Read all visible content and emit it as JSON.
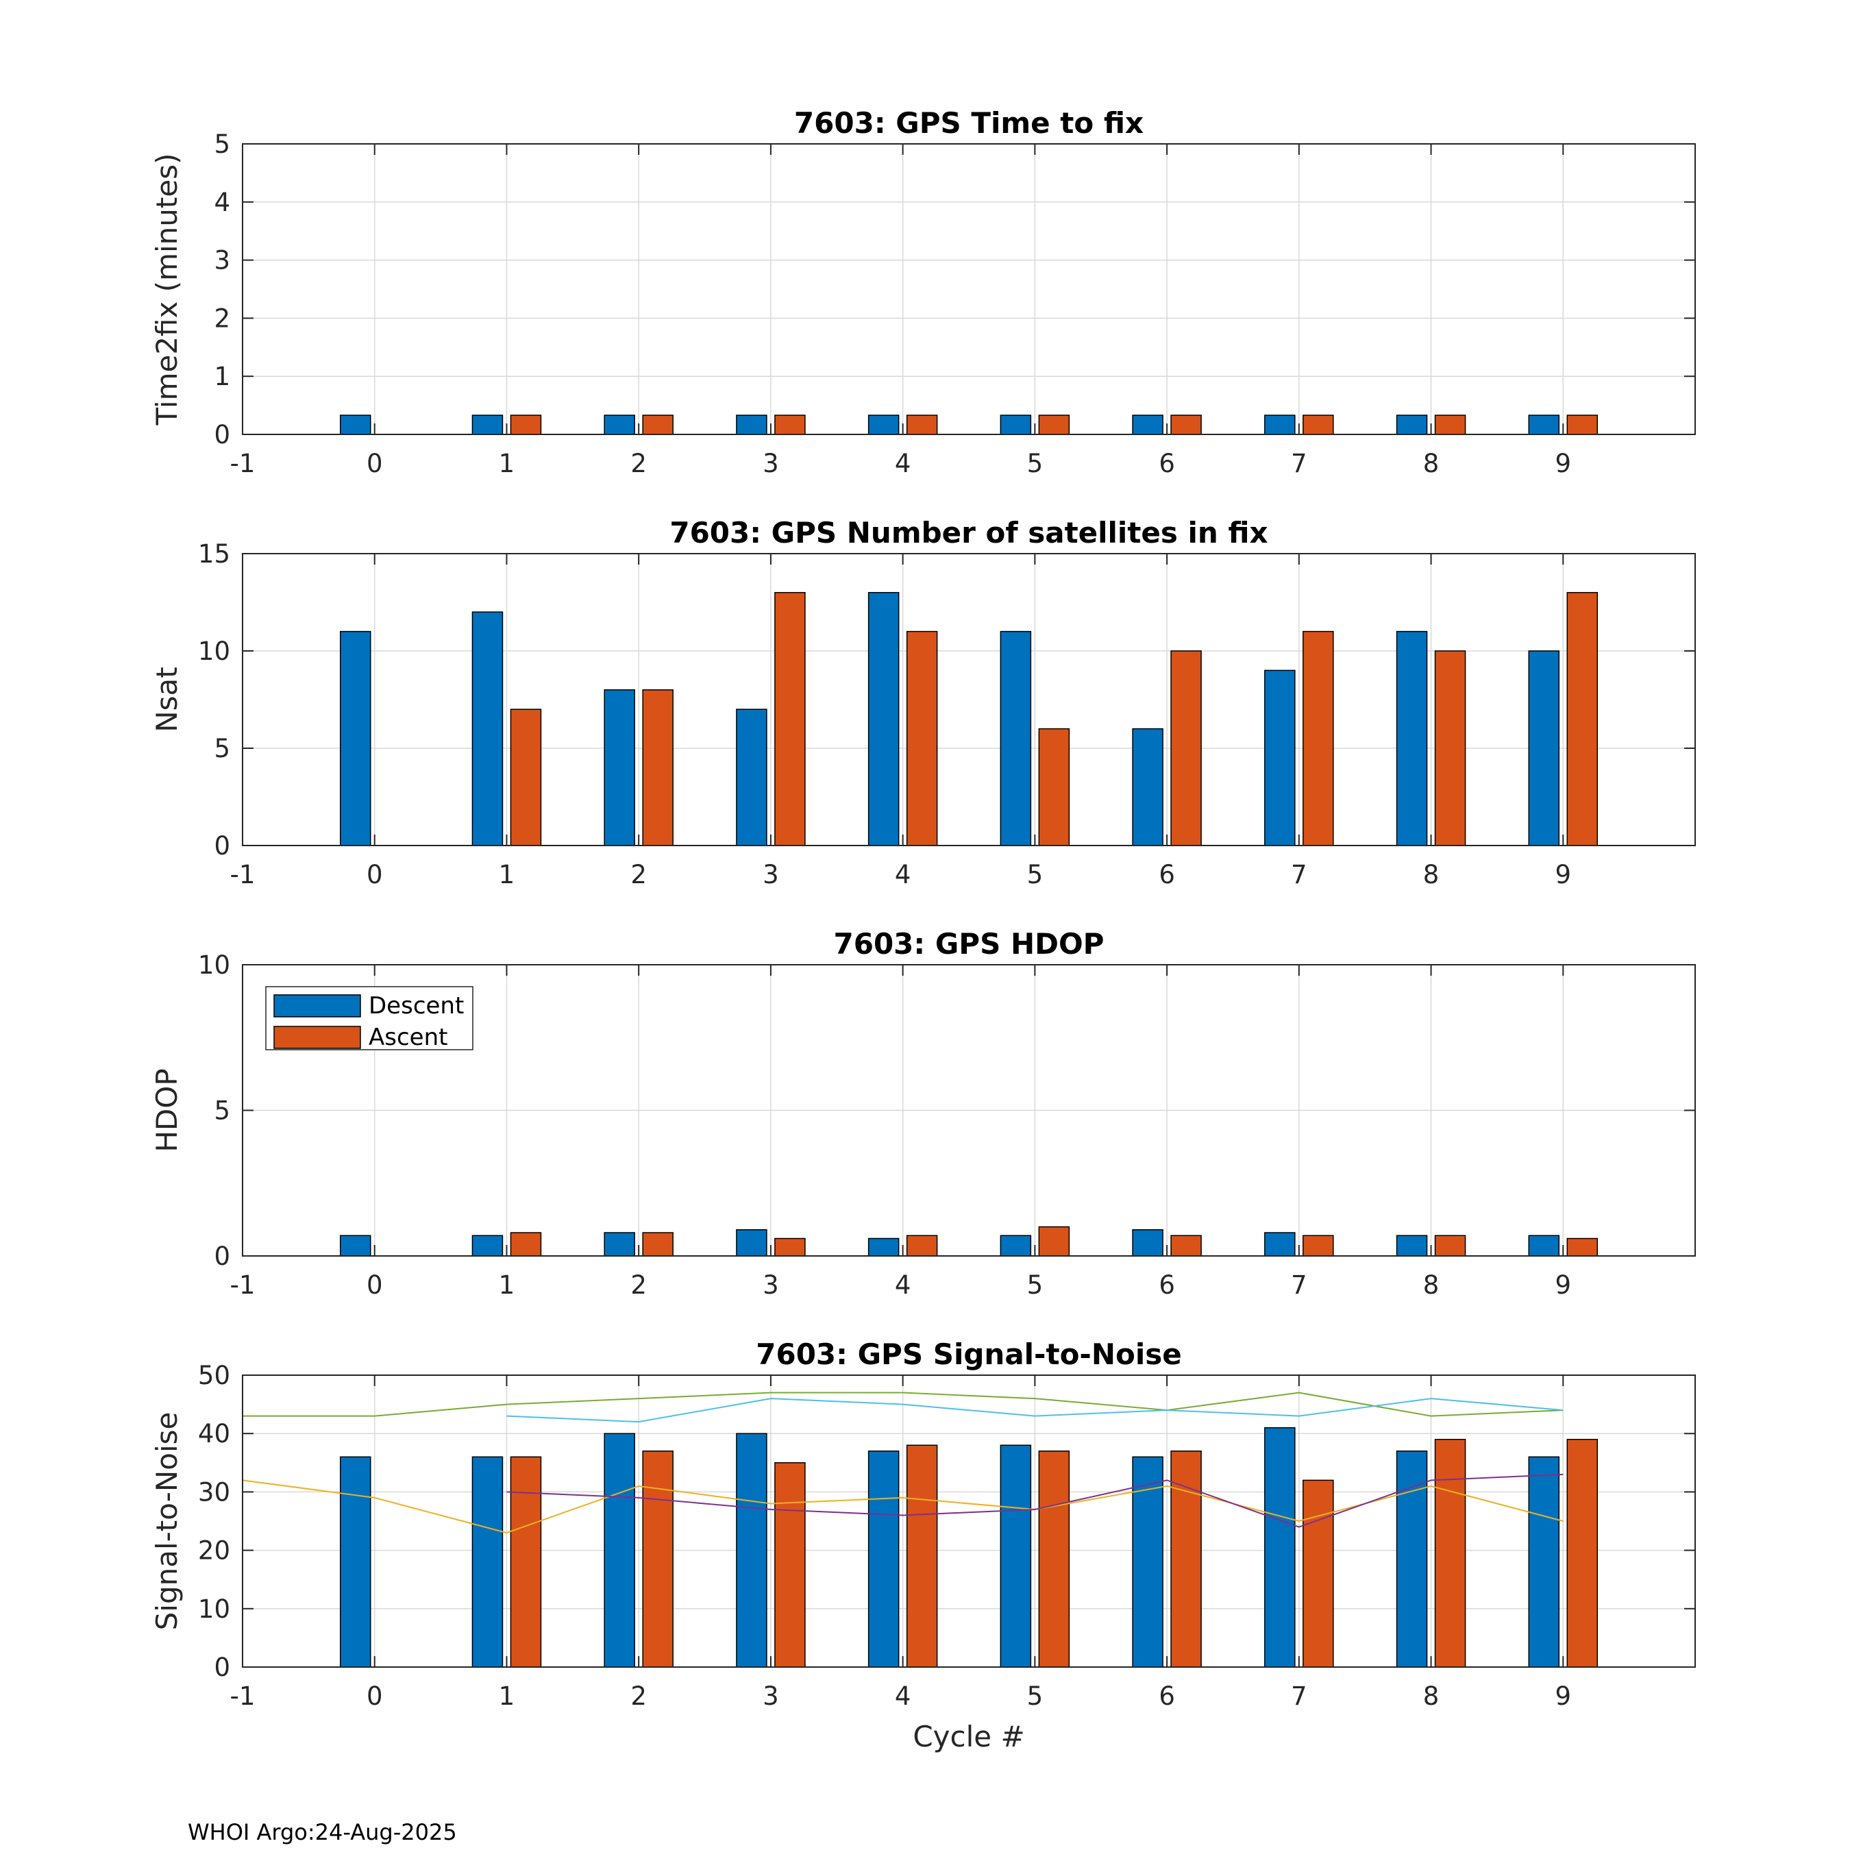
{
  "colors": {
    "descent": "#0072BD",
    "ascent": "#D95319",
    "snr_green": "#77AC30",
    "snr_cyan": "#4DBEEE",
    "snr_orange": "#EDB120",
    "snr_purple": "#7E2F8E",
    "grid": "#d9d9d9",
    "axis": "#262626"
  },
  "footer": "WHOI Argo:24-Aug-2025",
  "chart_data": [
    {
      "type": "bar",
      "title": "7603: GPS Time to fix",
      "xlabel": "",
      "ylabel": "Time2fix (minutes)",
      "xlim": [
        -1,
        10
      ],
      "ylim": [
        0,
        5
      ],
      "xticks": [
        -1,
        0,
        1,
        2,
        3,
        4,
        5,
        6,
        7,
        8,
        9
      ],
      "yticks": [
        0,
        1,
        2,
        3,
        4,
        5
      ],
      "grid": true,
      "categories": [
        0,
        1,
        2,
        3,
        4,
        5,
        6,
        7,
        8,
        9
      ],
      "series": [
        {
          "name": "Descent",
          "values": [
            0.33,
            0.33,
            0.33,
            0.33,
            0.33,
            0.33,
            0.33,
            0.33,
            0.33,
            0.33
          ]
        },
        {
          "name": "Ascent",
          "values": [
            null,
            0.33,
            0.33,
            0.33,
            0.33,
            0.33,
            0.33,
            0.33,
            0.33,
            0.33
          ]
        }
      ]
    },
    {
      "type": "bar",
      "title": "7603: GPS Number of satellites in fix",
      "xlabel": "",
      "ylabel": "Nsat",
      "xlim": [
        -1,
        10
      ],
      "ylim": [
        0,
        15
      ],
      "xticks": [
        -1,
        0,
        1,
        2,
        3,
        4,
        5,
        6,
        7,
        8,
        9
      ],
      "yticks": [
        0,
        5,
        10,
        15
      ],
      "grid": true,
      "categories": [
        0,
        1,
        2,
        3,
        4,
        5,
        6,
        7,
        8,
        9
      ],
      "series": [
        {
          "name": "Descent",
          "values": [
            11,
            12,
            8,
            7,
            13,
            11,
            6,
            9,
            11,
            10
          ]
        },
        {
          "name": "Ascent",
          "values": [
            null,
            7,
            8,
            13,
            11,
            6,
            10,
            11,
            10,
            13
          ]
        }
      ]
    },
    {
      "type": "bar",
      "title": "7603: GPS HDOP",
      "xlabel": "",
      "ylabel": "HDOP",
      "xlim": [
        -1,
        10
      ],
      "ylim": [
        0,
        10
      ],
      "xticks": [
        -1,
        0,
        1,
        2,
        3,
        4,
        5,
        6,
        7,
        8,
        9
      ],
      "yticks": [
        0,
        5,
        10
      ],
      "grid": true,
      "legend": {
        "position": "top-left",
        "entries": [
          "Descent",
          "Ascent"
        ]
      },
      "categories": [
        0,
        1,
        2,
        3,
        4,
        5,
        6,
        7,
        8,
        9
      ],
      "series": [
        {
          "name": "Descent",
          "values": [
            0.7,
            0.7,
            0.8,
            0.9,
            0.6,
            0.7,
            0.9,
            0.8,
            0.7,
            0.7
          ]
        },
        {
          "name": "Ascent",
          "values": [
            null,
            0.8,
            0.8,
            0.6,
            0.7,
            1.0,
            0.7,
            0.7,
            0.7,
            0.6
          ]
        }
      ]
    },
    {
      "type": "bar",
      "title": "7603: GPS Signal-to-Noise",
      "xlabel": "Cycle #",
      "ylabel": "Signal-to-Noise",
      "xlim": [
        -1,
        10
      ],
      "ylim": [
        0,
        50
      ],
      "xticks": [
        -1,
        0,
        1,
        2,
        3,
        4,
        5,
        6,
        7,
        8,
        9
      ],
      "yticks": [
        0,
        10,
        20,
        30,
        40,
        50
      ],
      "grid": true,
      "categories": [
        0,
        1,
        2,
        3,
        4,
        5,
        6,
        7,
        8,
        9
      ],
      "series": [
        {
          "name": "Descent",
          "values": [
            36,
            36,
            40,
            40,
            37,
            38,
            36,
            41,
            37,
            36
          ]
        },
        {
          "name": "Ascent",
          "values": [
            null,
            36,
            37,
            35,
            38,
            37,
            37,
            32,
            39,
            39
          ]
        }
      ],
      "lines": [
        {
          "color_key": "snr_green",
          "x": [
            -1,
            0,
            1,
            2,
            3,
            4,
            5,
            6,
            7,
            8,
            9
          ],
          "y": [
            43,
            43,
            45,
            46,
            47,
            47,
            46,
            44,
            47,
            43,
            44
          ]
        },
        {
          "color_key": "snr_cyan",
          "x": [
            1,
            2,
            3,
            4,
            5,
            6,
            7,
            8,
            9
          ],
          "y": [
            43,
            42,
            46,
            45,
            43,
            44,
            43,
            46,
            44
          ]
        },
        {
          "color_key": "snr_orange",
          "x": [
            -1,
            0,
            1,
            2,
            3,
            4,
            5,
            6,
            7,
            8,
            9
          ],
          "y": [
            32,
            29,
            23,
            31,
            28,
            29,
            27,
            31,
            25,
            31,
            25
          ]
        },
        {
          "color_key": "snr_purple",
          "x": [
            1,
            2,
            3,
            4,
            5,
            6,
            7,
            8,
            9
          ],
          "y": [
            30,
            29,
            27,
            26,
            27,
            32,
            24,
            32,
            33
          ]
        }
      ]
    }
  ]
}
